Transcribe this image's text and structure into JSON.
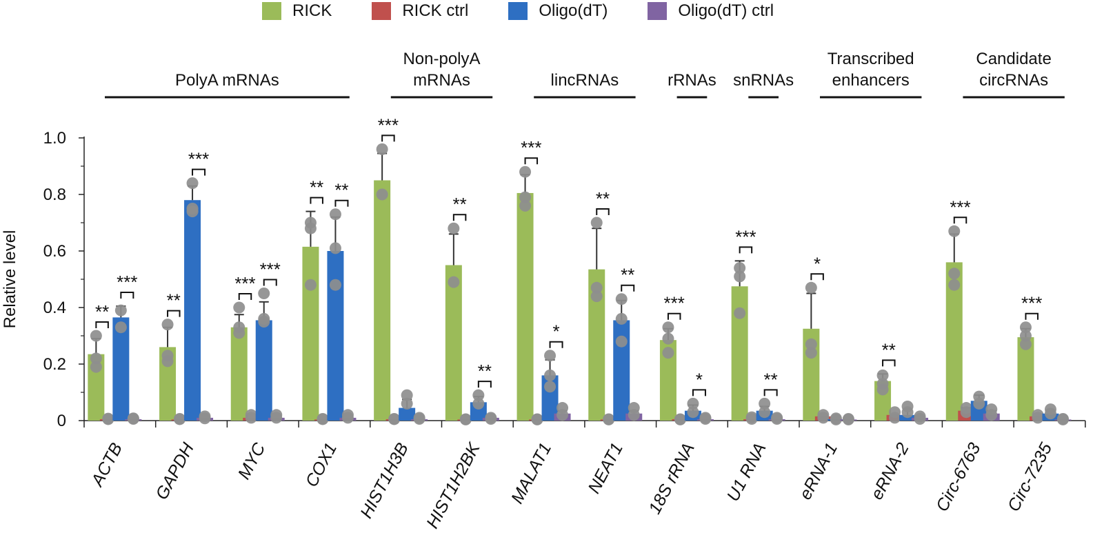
{
  "chart_data": {
    "type": "bar",
    "ylabel": "Relative level",
    "ylim": [
      0,
      1.0
    ],
    "yticks": [
      "0",
      "0.2",
      "0.4",
      "0.6",
      "0.8",
      "1.0"
    ],
    "legend": [
      {
        "name": "RICK",
        "color": "#9bbb59"
      },
      {
        "name": "RICK ctrl",
        "color": "#c0504d"
      },
      {
        "name": "Oligo(dT)",
        "color": "#2e6fc2"
      },
      {
        "name": "Oligo(dT) ctrl",
        "color": "#8064a2"
      }
    ],
    "groups": [
      {
        "label": "PolyA mRNAs",
        "categories": [
          "ACTB",
          "GAPDH",
          "MYC",
          "COX1"
        ]
      },
      {
        "label": "Non-polyA mRNAs",
        "categories": [
          "HIST1H3B",
          "HIST1H2BK"
        ]
      },
      {
        "label": "lincRNAs",
        "categories": [
          "MALAT1",
          "NEAT1"
        ]
      },
      {
        "label": "rRNAs",
        "categories": [
          "18S rRNA"
        ]
      },
      {
        "label": "snRNAs",
        "categories": [
          "U1 RNA"
        ]
      },
      {
        "label": "Transcribed enhancers",
        "categories": [
          "eRNA-1",
          "eRNA-2"
        ]
      },
      {
        "label": "Candidate circRNAs",
        "categories": [
          "Circ-6763",
          "Circ-7235"
        ]
      }
    ],
    "categories": [
      "ACTB",
      "GAPDH",
      "MYC",
      "COX1",
      "HIST1H3B",
      "HIST1H2BK",
      "MALAT1",
      "NEAT1",
      "18S rRNA",
      "U1 RNA",
      "eRNA-1",
      "eRNA-2",
      "Circ-6763",
      "Circ-7235"
    ],
    "series": [
      {
        "name": "RICK",
        "values": [
          0.235,
          0.26,
          0.33,
          0.615,
          0.85,
          0.55,
          0.805,
          0.535,
          0.285,
          0.475,
          0.325,
          0.14,
          0.56,
          0.295
        ],
        "errors": [
          0.055,
          0.07,
          0.045,
          0.125,
          0.095,
          0.11,
          0.065,
          0.145,
          0.04,
          0.09,
          0.125,
          0.025,
          0.1,
          0.03
        ]
      },
      {
        "name": "RICK ctrl",
        "values": [
          0.005,
          0.004,
          0.01,
          0.004,
          0.005,
          0.004,
          0.004,
          0.004,
          0.005,
          0.005,
          0.015,
          0.02,
          0.035,
          0.015
        ],
        "errors": [
          0,
          0,
          0,
          0,
          0,
          0,
          0,
          0,
          0,
          0,
          0,
          0,
          0.01,
          0
        ]
      },
      {
        "name": "Oligo(dT)",
        "values": [
          0.365,
          0.78,
          0.355,
          0.6,
          0.045,
          0.065,
          0.16,
          0.355,
          0.035,
          0.035,
          0.005,
          0.02,
          0.07,
          0.025
        ],
        "errors": [
          0.04,
          0.05,
          0.065,
          0.12,
          0.03,
          0.02,
          0.055,
          0.07,
          0.02,
          0.015,
          0,
          0.02,
          0.02,
          0.01
        ]
      },
      {
        "name": "Oligo(dT) ctrl",
        "values": [
          0.005,
          0.01,
          0.01,
          0.01,
          0.005,
          0.01,
          0.025,
          0.025,
          0.005,
          0.005,
          0.004,
          0.01,
          0.025,
          0.004
        ],
        "errors": [
          0,
          0,
          0,
          0,
          0,
          0,
          0.01,
          0.01,
          0,
          0,
          0,
          0,
          0.01,
          0
        ]
      }
    ],
    "points": [
      [
        [
          0.3,
          0.22,
          0.19
        ],
        [
          0.007,
          0.005
        ],
        [
          0.39,
          0.33
        ],
        [
          0.008,
          0.006
        ]
      ],
      [
        [
          0.34,
          0.23,
          0.21
        ],
        [
          0.006,
          0.005
        ],
        [
          0.84,
          0.75,
          0.74
        ],
        [
          0.015,
          0.008
        ]
      ],
      [
        [
          0.4,
          0.33,
          0.31
        ],
        [
          0.02,
          0.01
        ],
        [
          0.45,
          0.36,
          0.35
        ],
        [
          0.02,
          0.01
        ]
      ],
      [
        [
          0.7,
          0.68,
          0.48
        ],
        [
          0.006,
          0.005
        ],
        [
          0.73,
          0.61,
          0.48
        ],
        [
          0.02,
          0.01
        ]
      ],
      [
        [
          0.96,
          0.8
        ],
        [
          0.006,
          0.005
        ],
        [
          0.09,
          0.06
        ],
        [
          0.01,
          0.006
        ]
      ],
      [
        [
          0.68,
          0.49
        ],
        [
          0.005,
          0.004
        ],
        [
          0.09,
          0.06
        ],
        [
          0.01,
          0.006
        ]
      ],
      [
        [
          0.88,
          0.79,
          0.76
        ],
        [
          0.005,
          0.004
        ],
        [
          0.23,
          0.16,
          0.12
        ],
        [
          0.045,
          0.02
        ]
      ],
      [
        [
          0.7,
          0.47,
          0.44
        ],
        [
          0.005,
          0.004
        ],
        [
          0.43,
          0.36,
          0.28
        ],
        [
          0.045,
          0.02
        ]
      ],
      [
        [
          0.33,
          0.29,
          0.24
        ],
        [
          0.005,
          0.004
        ],
        [
          0.06,
          0.03
        ],
        [
          0.01,
          0.006
        ]
      ],
      [
        [
          0.54,
          0.51,
          0.38
        ],
        [
          0.012,
          0.006
        ],
        [
          0.06,
          0.03
        ],
        [
          0.01,
          0.006
        ]
      ],
      [
        [
          0.47,
          0.27,
          0.24
        ],
        [
          0.02,
          0.01
        ],
        [
          0.008,
          0.004
        ],
        [
          0.006,
          0.004
        ]
      ],
      [
        [
          0.16,
          0.13,
          0.11
        ],
        [
          0.03,
          0.01
        ],
        [
          0.05,
          0.03
        ],
        [
          0.015,
          0.006
        ]
      ],
      [
        [
          0.67,
          0.52,
          0.48
        ],
        [
          0.045,
          0.03
        ],
        [
          0.085,
          0.06
        ],
        [
          0.04,
          0.02
        ]
      ],
      [
        [
          0.33,
          0.3,
          0.27
        ],
        [
          0.02,
          0.01
        ],
        [
          0.04,
          0.025
        ],
        [
          0.006,
          0.004
        ]
      ]
    ],
    "significance": [
      {
        "category": "ACTB",
        "series": "RICK",
        "label": "**"
      },
      {
        "category": "ACTB",
        "series": "Oligo(dT)",
        "label": "***"
      },
      {
        "category": "GAPDH",
        "series": "RICK",
        "label": "**"
      },
      {
        "category": "GAPDH",
        "series": "Oligo(dT)",
        "label": "***"
      },
      {
        "category": "MYC",
        "series": "RICK",
        "label": "***"
      },
      {
        "category": "MYC",
        "series": "Oligo(dT)",
        "label": "***"
      },
      {
        "category": "COX1",
        "series": "RICK",
        "label": "**"
      },
      {
        "category": "COX1",
        "series": "Oligo(dT)",
        "label": "**"
      },
      {
        "category": "HIST1H3B",
        "series": "RICK",
        "label": "***"
      },
      {
        "category": "HIST1H2BK",
        "series": "RICK",
        "label": "**"
      },
      {
        "category": "HIST1H2BK",
        "series": "Oligo(dT)",
        "label": "**"
      },
      {
        "category": "MALAT1",
        "series": "RICK",
        "label": "***"
      },
      {
        "category": "MALAT1",
        "series": "Oligo(dT)",
        "label": "*"
      },
      {
        "category": "NEAT1",
        "series": "RICK",
        "label": "**"
      },
      {
        "category": "NEAT1",
        "series": "Oligo(dT)",
        "label": "**"
      },
      {
        "category": "18S rRNA",
        "series": "RICK",
        "label": "***"
      },
      {
        "category": "18S rRNA",
        "series": "Oligo(dT)",
        "label": "*"
      },
      {
        "category": "U1 RNA",
        "series": "RICK",
        "label": "***"
      },
      {
        "category": "U1 RNA",
        "series": "Oligo(dT)",
        "label": "**"
      },
      {
        "category": "eRNA-1",
        "series": "RICK",
        "label": "*"
      },
      {
        "category": "eRNA-2",
        "series": "RICK",
        "label": "**"
      },
      {
        "category": "Circ-6763",
        "series": "RICK",
        "label": "***"
      },
      {
        "category": "Circ-7235",
        "series": "RICK",
        "label": "***"
      }
    ]
  }
}
